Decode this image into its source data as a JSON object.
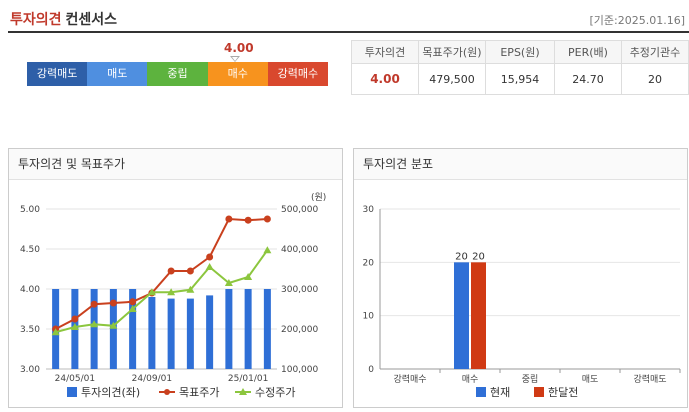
{
  "header": {
    "title_red": "투자의견",
    "title_dark": "컨센서스",
    "date": "[기준:2025.01.16]"
  },
  "scale": {
    "items": [
      "강력매도",
      "매도",
      "중립",
      "매수",
      "강력매수"
    ],
    "colors": [
      "#2e5fa8",
      "#4f8fe0",
      "#5db33e",
      "#f7931e",
      "#d9482e"
    ],
    "value": "4.00"
  },
  "summary": {
    "headers": [
      "투자의견",
      "목표주가(원)",
      "EPS(원)",
      "PER(배)",
      "추정기관수"
    ],
    "values": [
      "4.00",
      "479,500",
      "15,954",
      "24.70",
      "20"
    ]
  },
  "chart_data": [
    {
      "type": "bar+line",
      "title": "투자의견 및 목표주가",
      "x_ticks": [
        "24/05/01",
        "24/09/01",
        "25/01/01"
      ],
      "y_left": {
        "ticks": [
          "5.00",
          "4.50",
          "4.00",
          "3.50",
          "3.00"
        ],
        "ylim": [
          3.0,
          5.0
        ]
      },
      "y_right": {
        "unit": "(원)",
        "ticks": [
          "500,000",
          "400,000",
          "300,000",
          "200,000",
          "100,000"
        ],
        "ylim": [
          100000,
          500000
        ]
      },
      "series": [
        {
          "name": "투자의견(좌)",
          "type": "bar",
          "axis": "left",
          "color": "#2f6fd6",
          "values": [
            4.0,
            4.0,
            4.0,
            4.0,
            4.0,
            3.9,
            3.88,
            3.88,
            3.92,
            4.0,
            4.0,
            4.0
          ]
        },
        {
          "name": "목표주가",
          "type": "line",
          "axis": "right",
          "color": "#c9401e",
          "values": [
            200000,
            225000,
            262000,
            265000,
            268000,
            290000,
            345000,
            345000,
            380000,
            475000,
            472000,
            475000
          ]
        },
        {
          "name": "수정주가",
          "type": "line",
          "axis": "right",
          "color": "#8cc63e",
          "values": [
            192000,
            205000,
            212000,
            208000,
            250000,
            292000,
            292000,
            298000,
            355000,
            315000,
            330000,
            397000
          ]
        }
      ]
    },
    {
      "type": "bar",
      "title": "투자의견 분포",
      "categories": [
        "강력매수",
        "매수",
        "중립",
        "매도",
        "강력매도"
      ],
      "ylim": [
        0,
        30
      ],
      "y_ticks": [
        "30",
        "20",
        "10",
        "0"
      ],
      "series": [
        {
          "name": "현재",
          "color": "#2f6fd6",
          "values": [
            0,
            20,
            0,
            0,
            0
          ]
        },
        {
          "name": "한달전",
          "color": "#d03a14",
          "values": [
            0,
            20,
            0,
            0,
            0
          ]
        }
      ]
    }
  ]
}
